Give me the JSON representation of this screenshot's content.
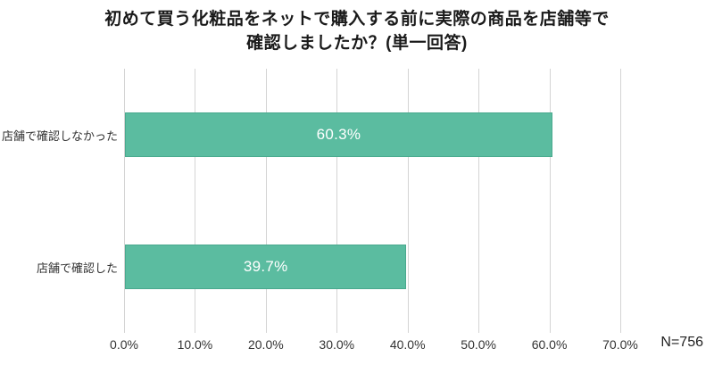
{
  "chart_data": {
    "type": "bar",
    "orientation": "horizontal",
    "title_lines": [
      "初めて買う化粧品をネットで購入する前に実際の商品を店舗等で",
      "確認しましたか？(単一回答)"
    ],
    "categories": [
      "店舗で確認しなかった",
      "店舗で確認した"
    ],
    "values": [
      60.3,
      39.7
    ],
    "value_labels": [
      "60.3%",
      "39.7%"
    ],
    "x_ticks": [
      "0.0%",
      "10.0%",
      "20.0%",
      "30.0%",
      "40.0%",
      "50.0%",
      "60.0%",
      "70.0%"
    ],
    "x_tick_values": [
      0,
      10,
      20,
      30,
      40,
      50,
      60,
      70
    ],
    "xlim": [
      0,
      70
    ],
    "xlabel": "",
    "ylabel": "",
    "grid": true,
    "legend": false,
    "sample_size": "N=756",
    "colors": {
      "bar_fill": "#5bbca0",
      "bar_border": "#49a98e",
      "gridline": "#d4d4d4",
      "title_text": "#1a1a1a",
      "axis_text": "#333333",
      "value_text": "#ffffff"
    }
  }
}
